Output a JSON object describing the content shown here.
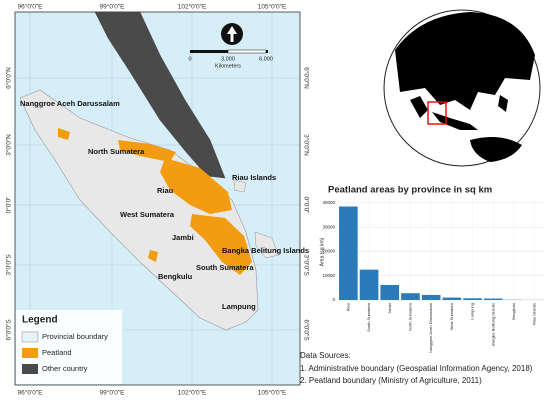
{
  "map": {
    "lon_labels": [
      "96°0'0\"E",
      "99°0'0\"E",
      "102°0'0\"E",
      "105°0'0\"E"
    ],
    "lat_labels": [
      "6°0'0\"N",
      "3°0'0\"N",
      "0°0'0\"",
      "3°0'0\"S",
      "6°0'0\"S"
    ],
    "scale": {
      "labels": [
        "0",
        "3,000",
        "6,000"
      ],
      "unit": "Kilometers"
    },
    "places": [
      "Nanggroe Aceh Darussalam",
      "North Sumatera",
      "Riau Islands",
      "Riau",
      "West Sumatera",
      "Jambi",
      "Bangka Belitung Islands",
      "South Sumatera",
      "Bengkulu",
      "Lampung"
    ],
    "legend": {
      "title": "Legend",
      "items": [
        "Provincial boundary",
        "Peatland",
        "Other country"
      ]
    }
  },
  "chart_data": {
    "type": "bar",
    "title": "Peatland areas by province in sq km",
    "y_label": "Area (sq km)",
    "categories": [
      "Riau",
      "South Sumatera",
      "Jambi",
      "North Sumatera",
      "Nanggroe Aceh Darussalam",
      "West Sumatera",
      "Lampung",
      "Bangka Belitung Islands",
      "Bengkulu",
      "Riau Islands"
    ],
    "values": [
      38500,
      12500,
      6200,
      2800,
      2100,
      1000,
      700,
      600,
      100,
      50
    ],
    "color": "#2b7bba",
    "ylim": [
      0,
      42000
    ],
    "yticks": [
      0,
      10000,
      20000,
      30000,
      40000
    ],
    "grid": true
  },
  "sources": {
    "title": "Data Sources:",
    "items": [
      "1. Administrative boundary (Geospatial Information Agency, 2018)",
      "2. Peatland boundary (Ministry of Agriculture, 2011)"
    ]
  }
}
